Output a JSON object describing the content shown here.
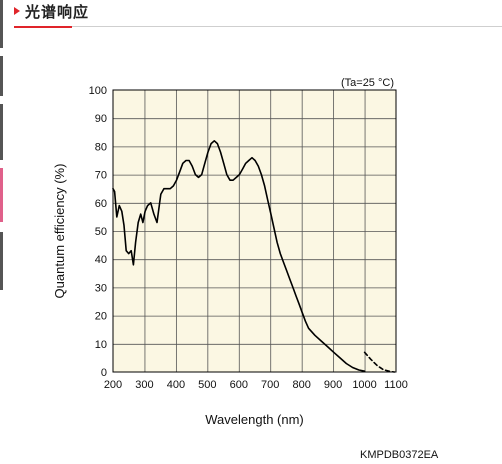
{
  "header": {
    "title": "光谱响应"
  },
  "image_code": "KMPDB0372EA",
  "colors": {
    "accent": "#e0242a",
    "plot_background": "#fbf7e3",
    "curve": "#000000",
    "grid": "#555555",
    "left_rail": [
      "#555555",
      "#555555",
      "#555555",
      "#e0608a",
      "#555555"
    ]
  },
  "chart_data": {
    "type": "line",
    "title": "",
    "xlabel": "Wavelength (nm)",
    "ylabel": "Quantum efficiency (%)",
    "annotation": "(Ta=25 °C)",
    "xlim": [
      200,
      1100
    ],
    "ylim": [
      0,
      100
    ],
    "x_ticks": [
      200,
      300,
      400,
      500,
      600,
      700,
      800,
      900,
      1000,
      1100
    ],
    "y_ticks": [
      0,
      10,
      20,
      30,
      40,
      50,
      60,
      70,
      80,
      90,
      100
    ],
    "grid": true,
    "legend": "none",
    "series": [
      {
        "style": "solid",
        "x": [
          200,
          205,
          212,
          220,
          228,
          235,
          242,
          250,
          258,
          265,
          272,
          280,
          288,
          295,
          302,
          310,
          320,
          330,
          340,
          352,
          362,
          372,
          382,
          392,
          402,
          412,
          422,
          432,
          442,
          452,
          462,
          472,
          482,
          492,
          502,
          512,
          522,
          532,
          542,
          552,
          562,
          572,
          582,
          592,
          602,
          612,
          622,
          632,
          642,
          652,
          662,
          672,
          682,
          692,
          702,
          712,
          722,
          732,
          742,
          752,
          762,
          772,
          782,
          792,
          802,
          812,
          822,
          842,
          862,
          882,
          902,
          922,
          942,
          962,
          982,
          1000
        ],
        "y": [
          65,
          64,
          55,
          59,
          57,
          52,
          43,
          42,
          43,
          38,
          46,
          53,
          56,
          53,
          57,
          59,
          60,
          56,
          53,
          63,
          65,
          65,
          65,
          66,
          68,
          71,
          74,
          75,
          75,
          73,
          70,
          69,
          70,
          74,
          78,
          81,
          82,
          81,
          78,
          74,
          70,
          68,
          68,
          69,
          70,
          72,
          74,
          75,
          76,
          75,
          73,
          70,
          66,
          61,
          56,
          51,
          46,
          42,
          39,
          36,
          33,
          30,
          27,
          24,
          21,
          18,
          15.5,
          13,
          11,
          9,
          7,
          5,
          3,
          1.6,
          0.7,
          0.3
        ]
      },
      {
        "style": "dashed",
        "x": [
          1000,
          1020,
          1040,
          1060,
          1080,
          1095
        ],
        "y": [
          7,
          4.5,
          2.3,
          0.8,
          0.2,
          0
        ]
      }
    ]
  }
}
